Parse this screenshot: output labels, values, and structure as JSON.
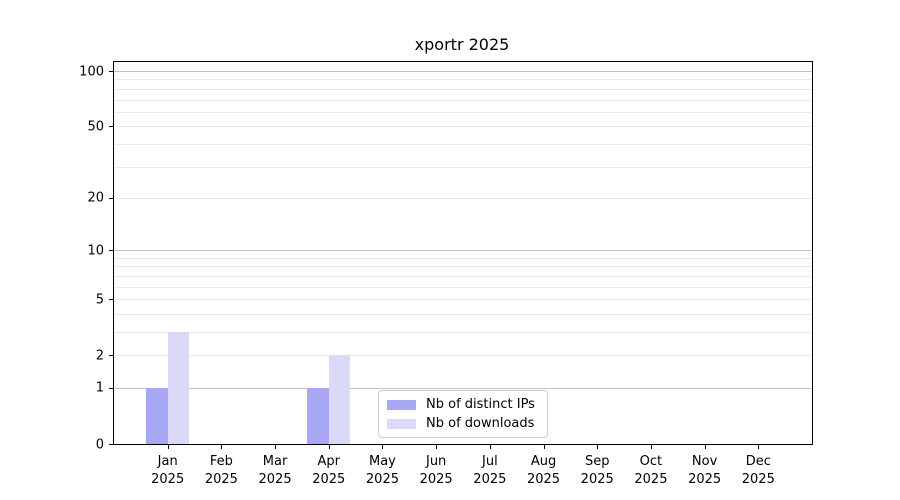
{
  "title": "xportr 2025",
  "colors": {
    "bar_distinct_ips": "#a7a7f3",
    "bar_downloads": "#dadaf8",
    "grid_major": "#c3c3c3",
    "grid_minor": "#eaeaea",
    "axis_spine": "#000000",
    "legend_border": "#cccccc"
  },
  "legend": {
    "items": [
      {
        "label": "Nb of distinct IPs"
      },
      {
        "label": "Nb of downloads"
      }
    ]
  },
  "chart_data": {
    "type": "bar",
    "title": "xportr 2025",
    "xlabel": "",
    "ylabel": "",
    "categories": [
      "Jan 2025",
      "Feb 2025",
      "Mar 2025",
      "Apr 2025",
      "May 2025",
      "Jun 2025",
      "Jul 2025",
      "Aug 2025",
      "Sep 2025",
      "Oct 2025",
      "Nov 2025",
      "Dec 2025"
    ],
    "series": [
      {
        "name": "Nb of distinct IPs",
        "color": "#a7a7f3",
        "values": [
          1,
          0,
          0,
          1,
          0,
          0,
          0,
          0,
          0,
          0,
          0,
          0
        ]
      },
      {
        "name": "Nb of downloads",
        "color": "#dadaf8",
        "values": [
          3,
          0,
          0,
          2,
          0,
          0,
          0,
          0,
          0,
          0,
          0,
          0
        ]
      }
    ],
    "scale": "log1p",
    "ylim": [
      0,
      112
    ],
    "yticks": [
      0,
      1,
      2,
      5,
      10,
      20,
      50,
      100
    ],
    "major_gridlines": [
      1,
      10,
      100
    ],
    "minor_gridlines": [
      2,
      3,
      4,
      5,
      6,
      7,
      8,
      9,
      20,
      30,
      40,
      50,
      60,
      70,
      80,
      90
    ],
    "grid": true,
    "legend_position": "lower center"
  }
}
